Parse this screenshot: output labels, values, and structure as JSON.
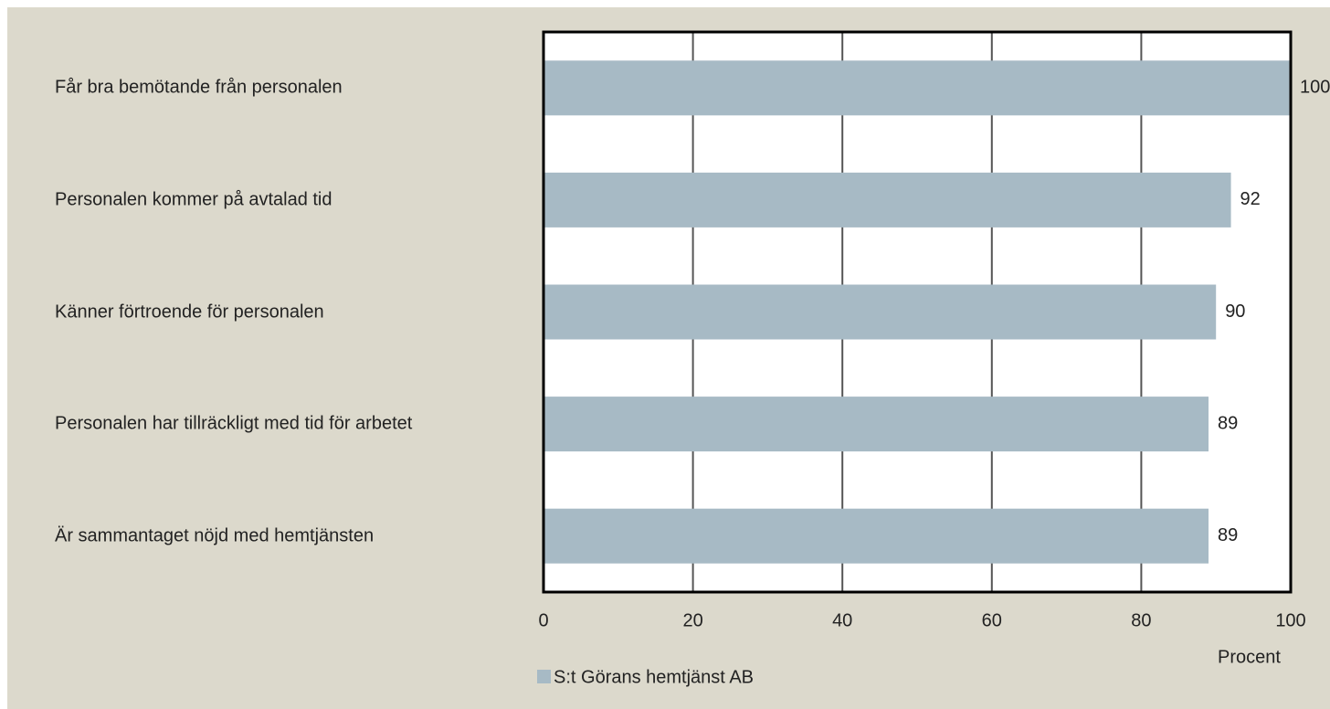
{
  "chart_data": {
    "type": "bar",
    "orientation": "horizontal",
    "categories": [
      "Får bra bemötande från personalen",
      "Personalen kommer på avtalad tid",
      "Känner förtroende för personalen",
      "Personalen har tillräckligt med tid för arbetet",
      "Är sammantaget nöjd med hemtjänsten"
    ],
    "series": [
      {
        "name": "S:t Görans hemtjänst AB",
        "color": "#a7bac5",
        "values": [
          100,
          92,
          90,
          89,
          89
        ]
      }
    ],
    "xlim": [
      0,
      100
    ],
    "xticks": [
      0,
      20,
      40,
      60,
      80,
      100
    ],
    "xlabel": "Procent",
    "grid": true,
    "legend": "bottom"
  }
}
